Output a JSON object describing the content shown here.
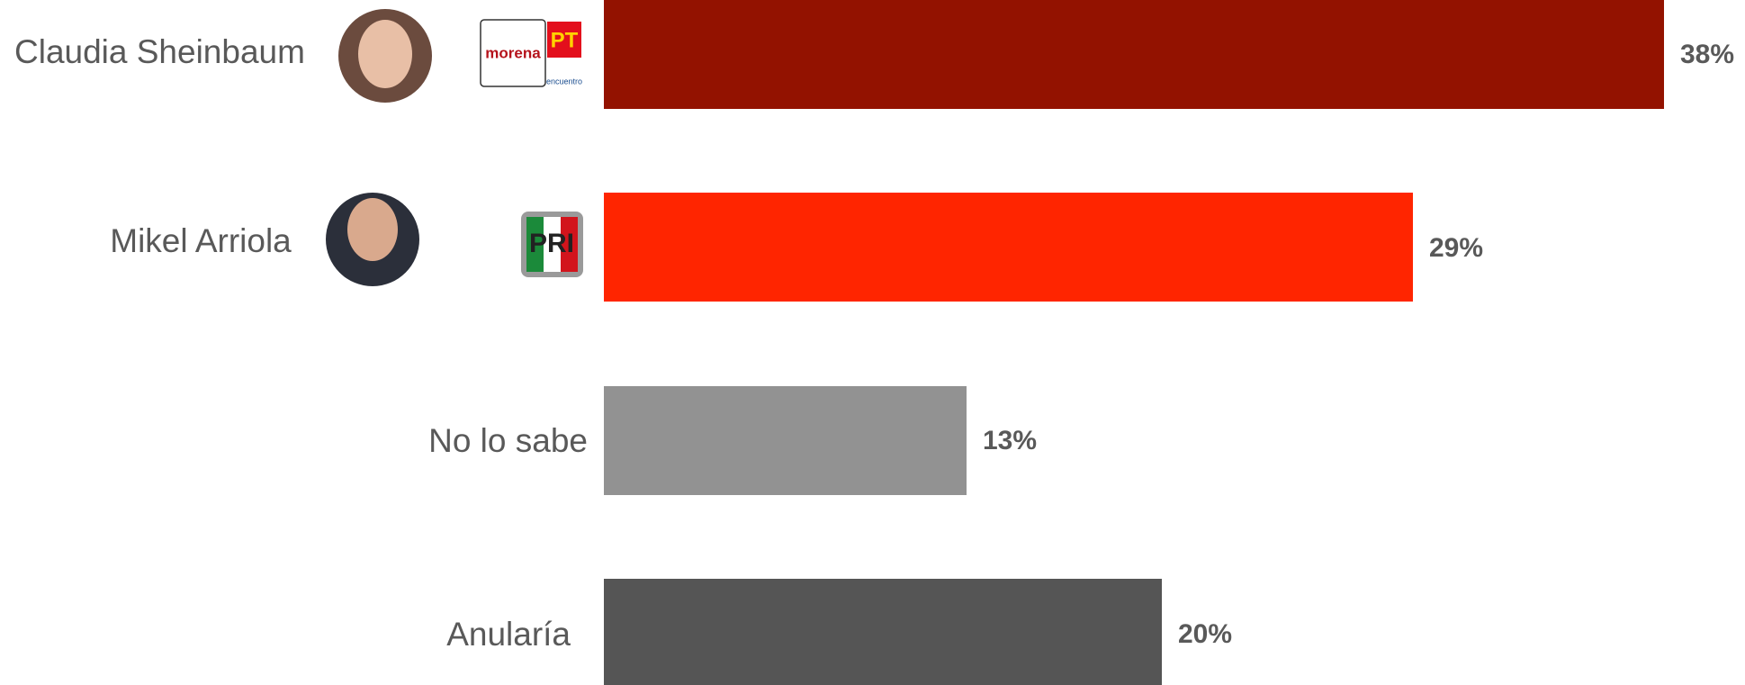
{
  "chart_data": {
    "type": "bar",
    "orientation": "horizontal",
    "categories": [
      "Claudia Sheinbaum",
      "Mikel Arriola",
      "No lo sabe",
      "Anularía"
    ],
    "values": [
      38,
      29,
      13,
      20
    ],
    "value_labels": [
      "38%",
      "29%",
      "13%",
      "20%"
    ],
    "colors": [
      "#931200",
      "#ff2500",
      "#929292",
      "#555555"
    ],
    "logo_texts": [
      "morena",
      "PT",
      "encuentro",
      "PRI"
    ]
  }
}
